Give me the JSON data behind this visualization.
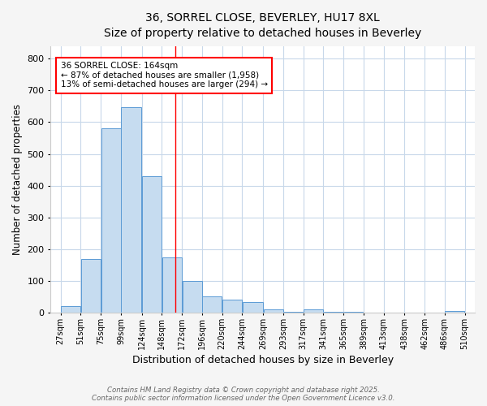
{
  "title_line1": "36, SORREL CLOSE, BEVERLEY, HU17 8XL",
  "title_line2": "Size of property relative to detached houses in Beverley",
  "xlabel": "Distribution of detached houses by size in Beverley",
  "ylabel": "Number of detached properties",
  "bar_color": "#c6dcf0",
  "bar_edge_color": "#5b9bd5",
  "bar_left_edges": [
    27,
    51,
    75,
    99,
    124,
    148,
    172,
    196,
    220,
    244,
    269,
    293,
    317,
    341,
    365,
    389,
    413,
    438,
    462,
    486
  ],
  "bar_widths": [
    24,
    24,
    24,
    25,
    24,
    24,
    24,
    24,
    24,
    25,
    24,
    24,
    24,
    24,
    24,
    24,
    25,
    24,
    24,
    24
  ],
  "bar_heights": [
    20,
    168,
    581,
    648,
    430,
    175,
    100,
    52,
    40,
    33,
    10,
    2,
    10,
    3,
    2,
    1,
    0,
    0,
    0,
    5
  ],
  "tick_labels": [
    "27sqm",
    "51sqm",
    "75sqm",
    "99sqm",
    "124sqm",
    "148sqm",
    "172sqm",
    "196sqm",
    "220sqm",
    "244sqm",
    "269sqm",
    "293sqm",
    "317sqm",
    "341sqm",
    "365sqm",
    "389sqm",
    "413sqm",
    "438sqm",
    "462sqm",
    "486sqm",
    "510sqm"
  ],
  "tick_positions": [
    27,
    51,
    75,
    99,
    124,
    148,
    172,
    196,
    220,
    244,
    269,
    293,
    317,
    341,
    365,
    389,
    413,
    438,
    462,
    486,
    510
  ],
  "red_line_x": 164,
  "ylim": [
    0,
    840
  ],
  "xlim": [
    15,
    522
  ],
  "annotation_text": "36 SORREL CLOSE: 164sqm\n← 87% of detached houses are smaller (1,958)\n13% of semi-detached houses are larger (294) →",
  "footer_line1": "Contains HM Land Registry data © Crown copyright and database right 2025.",
  "footer_line2": "Contains public sector information licensed under the Open Government Licence v3.0.",
  "background_color": "#f5f5f5",
  "plot_bg_color": "#ffffff",
  "grid_color": "#c8d8ea",
  "yticks": [
    0,
    100,
    200,
    300,
    400,
    500,
    600,
    700,
    800
  ]
}
